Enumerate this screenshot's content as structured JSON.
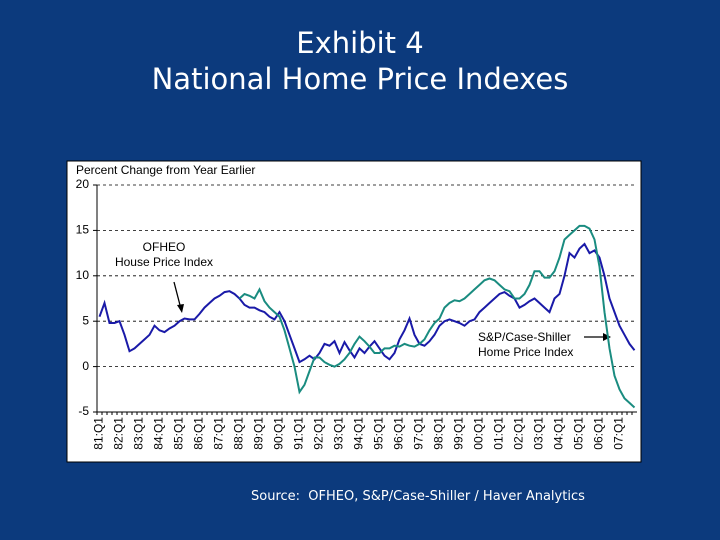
{
  "title": "Exhibit 4",
  "subtitle": "National Home Price Indexes",
  "source": "Source:  OFHEO, S&P/Case-Shiller / Haver Analytics",
  "chart_data": {
    "type": "line",
    "y_label": "Percent Change from Year Earlier",
    "categories": [
      "81:Q1",
      null,
      null,
      null,
      "82:Q1",
      null,
      null,
      null,
      "83:Q1",
      null,
      null,
      null,
      "84:Q1",
      null,
      null,
      null,
      "85:Q1",
      null,
      null,
      null,
      "86:Q1",
      null,
      null,
      null,
      "87:Q1",
      null,
      null,
      null,
      "88:Q1",
      null,
      null,
      null,
      "89:Q1",
      null,
      null,
      null,
      "90:Q1",
      null,
      null,
      null,
      "91:Q1",
      null,
      null,
      null,
      "92:Q1",
      null,
      null,
      null,
      "93:Q1",
      null,
      null,
      null,
      "94:Q1",
      null,
      null,
      null,
      "95:Q1",
      null,
      null,
      null,
      "96:Q1",
      null,
      null,
      null,
      "97:Q1",
      null,
      null,
      null,
      "98:Q1",
      null,
      null,
      null,
      "99:Q1",
      null,
      null,
      null,
      "00:Q1",
      null,
      null,
      null,
      "01:Q1",
      null,
      null,
      null,
      "02:Q1",
      null,
      null,
      null,
      "03:Q1",
      null,
      null,
      null,
      "04:Q1",
      null,
      null,
      null,
      "05:Q1",
      null,
      null,
      null,
      "06:Q1",
      null,
      null,
      null,
      "07:Q1",
      null,
      null,
      null
    ],
    "series": [
      {
        "name": "OFHEO",
        "color": "#1a1aa8",
        "values": [
          5.5,
          7,
          4.8,
          4.8,
          5,
          3.5,
          1.7,
          2,
          2.5,
          3,
          3.5,
          4.5,
          4,
          3.8,
          4.2,
          4.5,
          5,
          5.3,
          5.2,
          5.2,
          5.8,
          6.5,
          7,
          7.5,
          7.8,
          8.2,
          8.3,
          8,
          7.5,
          6.8,
          6.5,
          6.5,
          6.2,
          6,
          5.5,
          5.2,
          6,
          5,
          3.5,
          2,
          0.5,
          0.8,
          1.2,
          0.8,
          1.5,
          2.5,
          2.3,
          2.8,
          1.5,
          2.7,
          1.8,
          1,
          2,
          1.5,
          2.2,
          2.8,
          2,
          1.2,
          0.8,
          1.5,
          3,
          4,
          5.3,
          3.5,
          2.5,
          2.3,
          2.8,
          3.5,
          4.5,
          5,
          5.2,
          5,
          4.8,
          4.5,
          5,
          5.2,
          6,
          6.5,
          7,
          7.5,
          8,
          8.2,
          7.8,
          7.5,
          6.5,
          6.8,
          7.2,
          7.5,
          7,
          6.5,
          6,
          7.5,
          8,
          10,
          12.5,
          12,
          13,
          13.5,
          12.5,
          12.8,
          12,
          10,
          7.5,
          6,
          4.5,
          3.5,
          2.5,
          1.8
        ]
      },
      {
        "name": "S&P/Case-Shiller",
        "color": "#1a8c80",
        "values": [
          null,
          null,
          null,
          null,
          null,
          null,
          null,
          null,
          null,
          null,
          null,
          null,
          null,
          null,
          null,
          null,
          null,
          null,
          null,
          null,
          null,
          null,
          null,
          null,
          null,
          null,
          null,
          null,
          7.5,
          8,
          7.8,
          7.5,
          8.5,
          7.2,
          6.5,
          6,
          5.5,
          4,
          2,
          0,
          -2.8,
          -2,
          -0.5,
          1,
          1,
          0.5,
          0.2,
          0,
          0.3,
          0.8,
          1.5,
          2.5,
          3.3,
          2.8,
          2.2,
          1.5,
          1.5,
          2,
          2,
          2.3,
          2.2,
          2.5,
          2.3,
          2.2,
          2.5,
          3,
          4,
          4.8,
          5.3,
          6.5,
          7,
          7.3,
          7.2,
          7.5,
          8,
          8.5,
          9,
          9.5,
          9.7,
          9.5,
          9,
          8.5,
          8.3,
          7.5,
          7.5,
          8,
          9,
          10.5,
          10.5,
          9.8,
          9.8,
          10.5,
          12,
          14,
          14.5,
          15,
          15.5,
          15.5,
          15.2,
          14,
          11,
          6,
          2,
          -1,
          -2.5,
          -3.5,
          -4,
          -4.5
        ]
      }
    ],
    "annotations": [
      "House Price Index",
      "Home Price Index"
    ],
    "ylim": [
      -5,
      20
    ],
    "yticks": [
      -5,
      0,
      5,
      10,
      15,
      20
    ],
    "grid": true
  }
}
